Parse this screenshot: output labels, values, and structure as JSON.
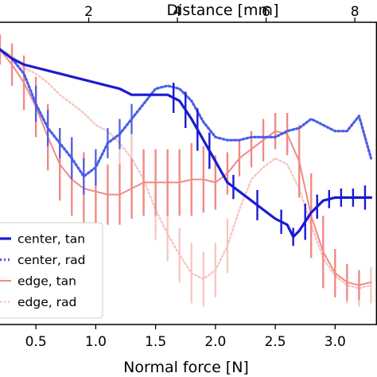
{
  "chart_data": {
    "type": "line",
    "xlabel": "Normal force [N]",
    "x_top_label": "Distance [mm]",
    "xlim": [
      0.2,
      3.35
    ],
    "x_ticks": [
      0.5,
      1.0,
      1.5,
      2.0,
      2.5,
      3.0
    ],
    "x_tick_labels": [
      "0.5",
      "1.0",
      "1.5",
      "2.0",
      "2.5",
      "3.0"
    ],
    "top_axis_range": [
      0,
      8.5
    ],
    "top_ticks": [
      2,
      4,
      6,
      8
    ],
    "top_tick_labels": [
      "2",
      "4",
      "6",
      "8"
    ],
    "ylim": [
      0,
      1
    ],
    "grid": false,
    "legend_position": "lower-left",
    "series": [
      {
        "name": "center, tan",
        "color": "#1a1ad2",
        "style": "solid",
        "width": 3.2,
        "x": [
          0.2,
          0.3,
          0.4,
          0.5,
          0.6,
          0.7,
          0.8,
          0.9,
          1.0,
          1.1,
          1.2,
          1.3,
          1.4,
          1.5,
          1.6,
          1.7,
          1.8,
          1.9,
          2.0,
          2.1,
          2.2,
          2.3,
          2.4,
          2.5,
          2.6,
          2.65,
          2.7,
          2.8,
          2.9,
          3.0,
          3.1,
          3.2,
          3.3
        ],
        "y": [
          0.91,
          0.88,
          0.86,
          0.85,
          0.84,
          0.83,
          0.82,
          0.81,
          0.8,
          0.79,
          0.78,
          0.76,
          0.76,
          0.76,
          0.76,
          0.74,
          0.68,
          0.61,
          0.54,
          0.47,
          0.44,
          0.41,
          0.38,
          0.35,
          0.33,
          0.29,
          0.31,
          0.37,
          0.41,
          0.42,
          0.42,
          0.42,
          0.42
        ],
        "err_x": [
          1.65,
          1.75,
          1.85,
          1.95,
          2.15,
          2.35,
          2.55,
          2.65,
          2.75,
          2.85,
          2.95,
          3.05,
          3.15,
          3.25
        ],
        "err_y": [
          0.05,
          0.06,
          0.07,
          0.06,
          0.04,
          0.05,
          0.04,
          0.03,
          0.06,
          0.04,
          0.03,
          0.03,
          0.03,
          0.04
        ]
      },
      {
        "name": "center, rad",
        "color": "#4a5ce8",
        "style": "dotted",
        "width": 3.2,
        "x": [
          0.2,
          0.3,
          0.4,
          0.5,
          0.6,
          0.7,
          0.8,
          0.9,
          1.0,
          1.1,
          1.2,
          1.3,
          1.4,
          1.5,
          1.6,
          1.7,
          1.8,
          1.9,
          2.0,
          2.1,
          2.2,
          2.3,
          2.4,
          2.5,
          2.6,
          2.7,
          2.8,
          2.9,
          3.0,
          3.1,
          3.2,
          3.3
        ],
        "y": [
          0.91,
          0.88,
          0.83,
          0.73,
          0.65,
          0.6,
          0.55,
          0.49,
          0.52,
          0.6,
          0.63,
          0.68,
          0.73,
          0.78,
          0.79,
          0.78,
          0.74,
          0.67,
          0.62,
          0.61,
          0.61,
          0.62,
          0.62,
          0.62,
          0.64,
          0.65,
          0.68,
          0.66,
          0.64,
          0.64,
          0.69,
          0.55
        ],
        "err_x": [
          0.5,
          0.6,
          0.7,
          0.8,
          0.9,
          1.0,
          1.1,
          1.2,
          1.3
        ],
        "err_y": [
          0.06,
          0.06,
          0.05,
          0.07,
          0.06,
          0.06,
          0.05,
          0.05,
          0.05
        ]
      },
      {
        "name": "edge, tan",
        "color": "#f08a86",
        "style": "solid",
        "width": 2.0,
        "x": [
          0.2,
          0.3,
          0.4,
          0.5,
          0.6,
          0.7,
          0.8,
          0.9,
          1.0,
          1.1,
          1.2,
          1.3,
          1.4,
          1.5,
          1.6,
          1.7,
          1.8,
          1.9,
          2.0,
          2.1,
          2.2,
          2.3,
          2.4,
          2.5,
          2.6,
          2.7,
          2.8,
          2.9,
          3.0,
          3.1,
          3.2,
          3.3
        ],
        "y": [
          0.91,
          0.86,
          0.8,
          0.72,
          0.62,
          0.53,
          0.48,
          0.45,
          0.44,
          0.43,
          0.43,
          0.45,
          0.47,
          0.47,
          0.47,
          0.47,
          0.48,
          0.48,
          0.47,
          0.5,
          0.55,
          0.58,
          0.61,
          0.64,
          0.63,
          0.54,
          0.36,
          0.24,
          0.17,
          0.14,
          0.13,
          0.14
        ],
        "err_x": [
          0.2,
          0.3,
          0.4,
          0.5,
          0.6,
          0.7,
          0.8,
          0.9,
          1.0,
          1.1,
          1.2,
          1.3,
          1.4,
          1.5,
          1.6,
          1.7,
          1.8,
          1.9,
          2.0,
          2.1,
          2.2,
          2.3,
          2.4,
          2.5,
          2.6,
          2.7,
          2.8,
          2.9,
          3.0,
          3.1,
          3.2
        ],
        "err_y": [
          0.05,
          0.07,
          0.09,
          0.1,
          0.11,
          0.12,
          0.12,
          0.12,
          0.11,
          0.1,
          0.1,
          0.1,
          0.11,
          0.11,
          0.11,
          0.11,
          0.12,
          0.11,
          0.09,
          0.07,
          0.06,
          0.06,
          0.07,
          0.06,
          0.07,
          0.12,
          0.14,
          0.12,
          0.08,
          0.06,
          0.05
        ]
      },
      {
        "name": "edge, rad",
        "color": "#f6c4c0",
        "style": "dotted",
        "width": 2.4,
        "x": [
          0.2,
          0.3,
          0.4,
          0.5,
          0.6,
          0.7,
          0.8,
          0.9,
          1.0,
          1.1,
          1.2,
          1.3,
          1.4,
          1.5,
          1.6,
          1.7,
          1.8,
          1.9,
          2.0,
          2.1,
          2.2,
          2.3,
          2.4,
          2.5,
          2.6,
          2.7,
          2.8,
          2.9,
          3.0,
          3.1,
          3.2,
          3.3
        ],
        "y": [
          0.91,
          0.89,
          0.85,
          0.83,
          0.8,
          0.76,
          0.73,
          0.7,
          0.66,
          0.64,
          0.6,
          0.55,
          0.48,
          0.38,
          0.3,
          0.23,
          0.17,
          0.15,
          0.18,
          0.26,
          0.38,
          0.48,
          0.52,
          0.55,
          0.53,
          0.45,
          0.33,
          0.22,
          0.16,
          0.13,
          0.12,
          0.13
        ],
        "err_x": [
          1.2,
          1.3,
          1.4,
          1.5,
          1.6,
          1.7,
          1.8,
          1.9,
          2.0,
          2.1,
          2.8,
          2.9,
          3.0,
          3.1,
          3.2,
          3.3
        ],
        "err_y": [
          0.08,
          0.09,
          0.09,
          0.1,
          0.09,
          0.09,
          0.1,
          0.09,
          0.09,
          0.09,
          0.08,
          0.08,
          0.07,
          0.06,
          0.06,
          0.06
        ]
      }
    ]
  }
}
